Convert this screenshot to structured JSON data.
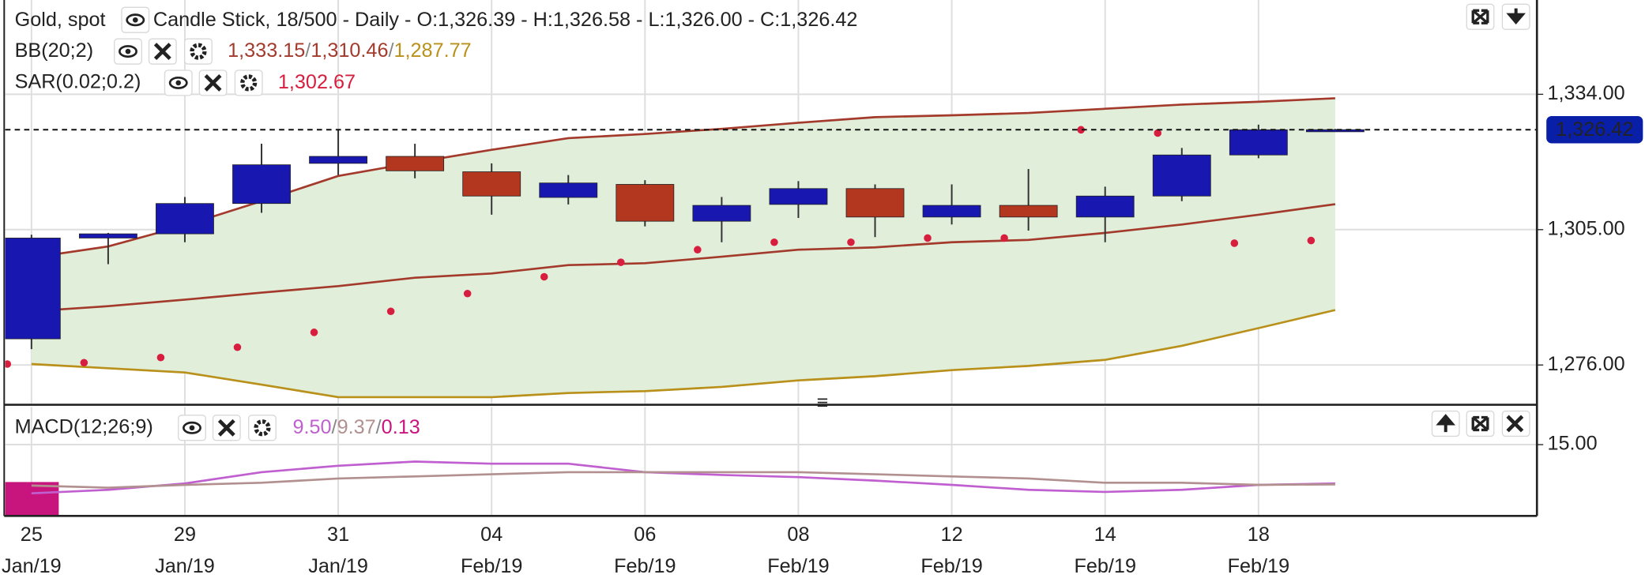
{
  "header": {
    "symbol": "Gold, spot",
    "description": "Candle Stick, 18/500 - Daily - O:1,326.39 - H:1,326.58 - L:1,326.00 - C:1,326.42"
  },
  "chart_data": [
    {
      "type": "candlestick",
      "categories": [
        "25",
        null,
        "29",
        null,
        "31",
        null,
        "04",
        null,
        "06",
        null,
        "08",
        null,
        "12",
        null,
        "14",
        null,
        "18",
        null
      ],
      "category_months": [
        "Jan/19",
        null,
        "Jan/19",
        null,
        "Jan/19",
        null,
        "Feb/19",
        null,
        "Feb/19",
        null,
        "Feb/19",
        null,
        "Feb/19",
        null,
        "Feb/19",
        null,
        "Feb/19",
        null
      ],
      "open": [
        1281.6,
        1303.2,
        1304.1,
        1310.6,
        1319.2,
        1320.7,
        1317.4,
        1311.9,
        1314.7,
        1306.8,
        1310.4,
        1313.8,
        1307.7,
        1310.2,
        1307.7,
        1312.2,
        1321.0,
        1326.39
      ],
      "high": [
        1303.9,
        1304.3,
        1312.0,
        1323.4,
        1326.4,
        1323.4,
        1319.2,
        1316.7,
        1315.6,
        1312.0,
        1315.4,
        1314.7,
        1314.7,
        1318.0,
        1314.2,
        1322.5,
        1327.5,
        1326.58
      ],
      "low": [
        1279.4,
        1297.6,
        1302.3,
        1308.6,
        1316.7,
        1316.0,
        1308.2,
        1310.4,
        1305.7,
        1302.3,
        1307.5,
        1303.4,
        1306.1,
        1304.8,
        1302.3,
        1311.1,
        1320.3,
        1326.0
      ],
      "close": [
        1303.2,
        1304.1,
        1310.6,
        1318.9,
        1320.7,
        1317.6,
        1312.2,
        1315.0,
        1306.8,
        1310.2,
        1313.8,
        1307.7,
        1310.2,
        1307.7,
        1312.2,
        1321.0,
        1326.4,
        1326.42
      ],
      "up_color": "#1818b0",
      "down_color": "#b3361f",
      "ylim": [
        1267.7,
        1354.2
      ],
      "yticks": [
        {
          "value": 1334,
          "label": "1,334.00"
        },
        {
          "value": 1305,
          "label": "1,305.00"
        },
        {
          "value": 1276,
          "label": "1,276.00"
        }
      ],
      "last_price": {
        "value": 1326.42,
        "label": "1,326.42"
      },
      "grid": true,
      "indicators": [
        {
          "label": "BB(20;2)",
          "separator": "/",
          "band_fill": "#e1eeda",
          "readouts": [
            {
              "text": "1,333.15",
              "color": "#a33a2c"
            },
            {
              "text": "1,310.46",
              "color": "#a33a2c"
            },
            {
              "text": "1,287.77",
              "color": "#b8901a"
            }
          ],
          "series": [
            {
              "color": "#a33a2c",
              "values": [
                1299.0,
                1301.4,
                1305.9,
                1311.1,
                1316.5,
                1319.4,
                1322.1,
                1324.6,
                1325.5,
                1326.6,
                1327.9,
                1329.1,
                1329.5,
                1330.0,
                1330.9,
                1331.8,
                1332.4,
                1333.15
              ]
            },
            {
              "color": "#a33a2c",
              "values": [
                1287.5,
                1288.6,
                1290.0,
                1291.5,
                1292.9,
                1294.7,
                1295.6,
                1297.4,
                1297.8,
                1299.2,
                1300.7,
                1301.2,
                1302.3,
                1302.8,
                1304.3,
                1306.1,
                1308.2,
                1310.46
              ]
            },
            {
              "color": "#b8901a",
              "values": [
                1276.2,
                1275.3,
                1274.4,
                1271.8,
                1269.1,
                1269.1,
                1269.1,
                1270.0,
                1270.4,
                1271.3,
                1272.7,
                1273.6,
                1274.9,
                1275.8,
                1277.1,
                1280.1,
                1283.9,
                1287.77
              ]
            }
          ]
        },
        {
          "label": "SAR(0.02;0.2)",
          "readouts": [
            {
              "text": "1,302.67",
              "color": "#d81e3e"
            }
          ],
          "series": [
            {
              "color": "#d81e3e",
              "style": "dots",
              "values": [
                1276.2,
                1276.5,
                1277.6,
                1279.8,
                1283.0,
                1287.5,
                1291.3,
                1294.9,
                1298.0,
                1300.7,
                1302.3,
                1302.3,
                1303.2,
                1303.2,
                1326.4,
                1325.7,
                1302.1,
                1302.67
              ]
            }
          ]
        }
      ]
    },
    {
      "type": "macd",
      "label": "MACD(12;26;9)",
      "separator": "/",
      "readouts": [
        {
          "text": "9.50",
          "color": "#c060d0"
        },
        {
          "text": "9.37",
          "color": "#b39090"
        },
        {
          "text": "0.13",
          "color": "#c8157e"
        }
      ],
      "ylim": [
        4.9,
        20.5
      ],
      "yticks": [
        {
          "value": 15,
          "label": "15.00"
        }
      ],
      "histogram": {
        "color": "#c8157e",
        "values": [
          9.7,
          null,
          null,
          null,
          null,
          null,
          null,
          null,
          null,
          null,
          null,
          null,
          null,
          null,
          null,
          null,
          null,
          null
        ]
      },
      "series": [
        {
          "color": "#c060d0",
          "values": [
            8.1,
            8.6,
            9.5,
            11.1,
            12.0,
            12.6,
            12.3,
            12.3,
            11.1,
            10.7,
            10.4,
            9.9,
            9.3,
            8.6,
            8.3,
            8.6,
            9.3,
            9.5
          ]
        },
        {
          "color": "#b39090",
          "values": [
            9.2,
            8.9,
            9.3,
            9.6,
            10.2,
            10.5,
            10.8,
            11.1,
            11.1,
            11.1,
            11.1,
            10.8,
            10.5,
            10.2,
            9.6,
            9.6,
            9.3,
            9.37
          ]
        }
      ]
    }
  ]
}
